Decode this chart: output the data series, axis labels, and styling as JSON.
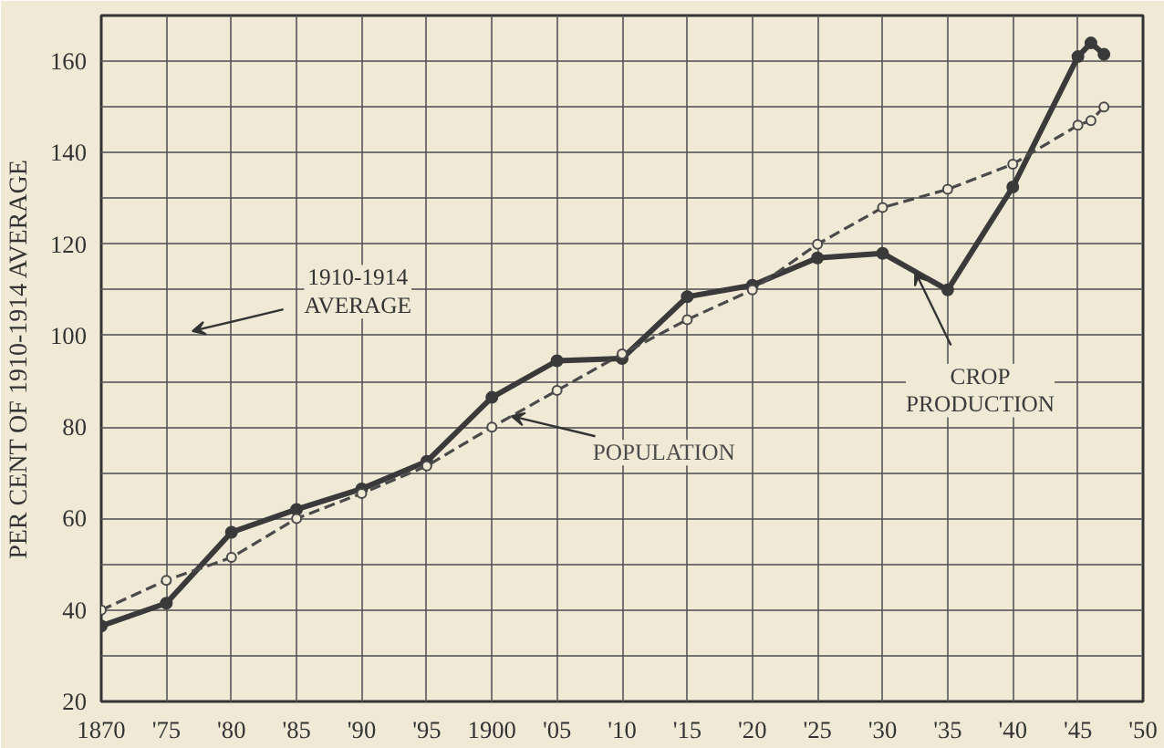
{
  "chart_data": {
    "type": "line",
    "ylabel": "PER CENT OF 1910-1914 AVERAGE",
    "xlim": [
      1870,
      1950
    ],
    "ylim": [
      20,
      170
    ],
    "xticks": [
      {
        "value": 1870,
        "label": "1870"
      },
      {
        "value": 1875,
        "label": "'75"
      },
      {
        "value": 1880,
        "label": "'80"
      },
      {
        "value": 1885,
        "label": "'85"
      },
      {
        "value": 1890,
        "label": "'90"
      },
      {
        "value": 1895,
        "label": "'95"
      },
      {
        "value": 1900,
        "label": "1900"
      },
      {
        "value": 1905,
        "label": "'05"
      },
      {
        "value": 1910,
        "label": "'10"
      },
      {
        "value": 1915,
        "label": "'15"
      },
      {
        "value": 1920,
        "label": "'20"
      },
      {
        "value": 1925,
        "label": "'25"
      },
      {
        "value": 1930,
        "label": "'30"
      },
      {
        "value": 1935,
        "label": "'35"
      },
      {
        "value": 1940,
        "label": "'40"
      },
      {
        "value": 1945,
        "label": "'45"
      },
      {
        "value": 1950,
        "label": "'50"
      }
    ],
    "yticks": [
      20,
      {
        "value": 30,
        "label": null
      },
      40,
      {
        "value": 50,
        "label": null
      },
      60,
      {
        "value": 70,
        "label": null
      },
      80,
      {
        "value": 90,
        "label": null
      },
      100,
      {
        "value": 110,
        "label": null
      },
      120,
      {
        "value": 130,
        "label": null
      },
      140,
      {
        "value": 150,
        "label": null
      },
      160
    ],
    "grid": true,
    "marker": "circle",
    "series": [
      {
        "name": "CROP PRODUCTION",
        "color": "#3a3a3a",
        "line_style": "solid",
        "x": [
          1870,
          1875,
          1880,
          1885,
          1890,
          1895,
          1900,
          1905,
          1910,
          1915,
          1920,
          1925,
          1930,
          1935,
          1940,
          1945,
          1946,
          1947
        ],
        "values": [
          36.5,
          41.5,
          57,
          62,
          66.5,
          72.5,
          86.5,
          94.5,
          95,
          108.5,
          111,
          117,
          118,
          110,
          132.5,
          161,
          164,
          161.5
        ]
      },
      {
        "name": "POPULATION",
        "color": "#4a4a4a",
        "line_style": "dashed",
        "x": [
          1870,
          1875,
          1880,
          1885,
          1890,
          1895,
          1900,
          1905,
          1910,
          1915,
          1920,
          1925,
          1930,
          1935,
          1940,
          1945,
          1946,
          1947
        ],
        "values": [
          40,
          46.5,
          51.5,
          60,
          65.5,
          71.5,
          80,
          88,
          96,
          103.5,
          110,
          120,
          128,
          132,
          137.5,
          146,
          147,
          150
        ]
      }
    ],
    "annotations": [
      "1910-1914\nAVERAGE"
    ]
  }
}
